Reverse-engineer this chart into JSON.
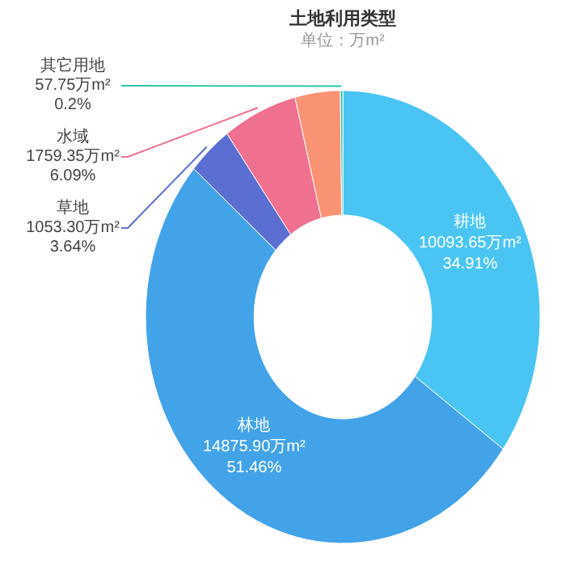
{
  "chart_data": {
    "type": "donut",
    "title": "土地利用类型",
    "subtitle": "单位：万m²",
    "categories": [
      "耕地",
      "林地",
      "草地",
      "水域",
      null,
      "其它用地"
    ],
    "values": [
      10093.65,
      14875.9,
      1053.3,
      1759.35,
      1070,
      57.75
    ],
    "value_labels": [
      "10093.65万m²\n34.91%",
      "14875.90万m²\n51.46%",
      "1053.30万m²\n3.64%",
      "1759.35万m²\n6.09%",
      null,
      "57.75万m²\n0.2%"
    ],
    "colors": [
      "#4ac5f3",
      "#42a3e8",
      "#5b6fd2",
      "#f07090",
      "#fa9274",
      "#27c6a8"
    ],
    "legend": false
  }
}
